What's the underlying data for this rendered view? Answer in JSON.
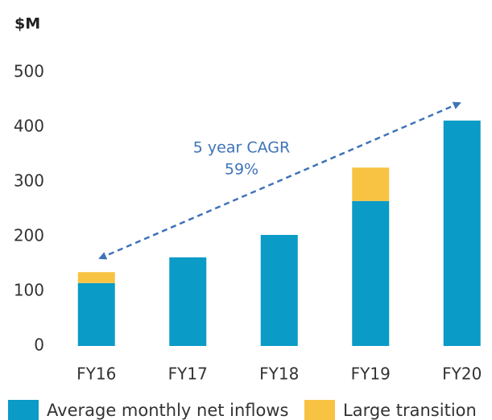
{
  "chart_data": {
    "type": "stacked_bar",
    "y_axis_label": "$M",
    "annotation": [
      "5 year CAGR",
      "59%"
    ],
    "categories": [
      "FY16",
      "FY17",
      "FY18",
      "FY19",
      "FY20"
    ],
    "series": [
      {
        "name": "Average monthly net inflows",
        "color": "#0a9bc6",
        "values": [
          115,
          162,
          203,
          265,
          412
        ]
      },
      {
        "name": "Large transition",
        "color": "#f8c343",
        "values": [
          20,
          null,
          null,
          61,
          null
        ]
      }
    ],
    "ylim": [
      0,
      500
    ],
    "yticks": [
      0,
      100,
      200,
      300,
      400,
      500
    ],
    "grid": false
  }
}
